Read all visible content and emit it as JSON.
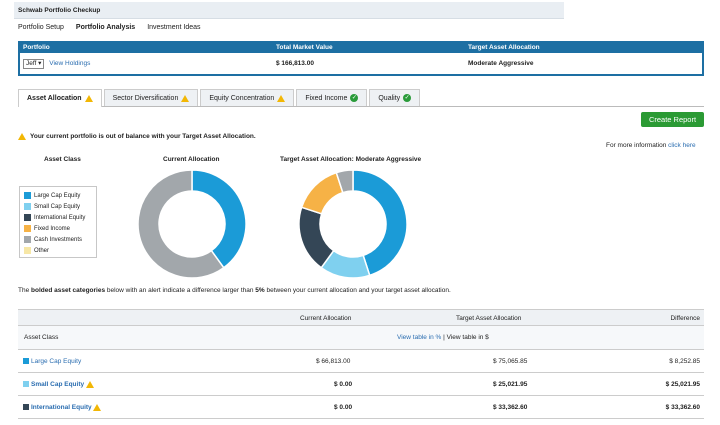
{
  "app": {
    "title": "Schwab Portfolio Checkup"
  },
  "nav": {
    "items": [
      "Portfolio Setup",
      "Portfolio Analysis",
      "Investment Ideas"
    ],
    "active_index": 1
  },
  "portfolio": {
    "headers": {
      "portfolio": "Portfolio",
      "market_value": "Total Market Value",
      "target": "Target Asset Allocation"
    },
    "account_select": "Jeff",
    "view_holdings": "View Holdings",
    "market_value": "$ 166,813.00",
    "target_allocation": "Moderate Aggressive"
  },
  "tabs": [
    {
      "label": "Asset Allocation",
      "status": "warn",
      "active": true
    },
    {
      "label": "Sector Diversification",
      "status": "warn",
      "active": false
    },
    {
      "label": "Equity Concentration",
      "status": "warn",
      "active": false
    },
    {
      "label": "Fixed Income",
      "status": "ok",
      "active": false
    },
    {
      "label": "Quality",
      "status": "ok",
      "active": false
    }
  ],
  "create_report": "Create Report",
  "alert_text": "Your current portfolio is out of balance with your Target Asset Allocation.",
  "more_info": {
    "text": "For more information",
    "link": "click here"
  },
  "columns": {
    "asset_class": "Asset Class",
    "current": "Current Allocation",
    "target": "Target Asset Allocation: Moderate Aggressive"
  },
  "legend": [
    {
      "label": "Large Cap Equity",
      "color": "#1b9bd7"
    },
    {
      "label": "Small Cap Equity",
      "color": "#7fd0ef"
    },
    {
      "label": "International Equity",
      "color": "#344656"
    },
    {
      "label": "Fixed Income",
      "color": "#f6b246"
    },
    {
      "label": "Cash Investments",
      "color": "#a2a7ab"
    },
    {
      "label": "Other",
      "color": "#f7e7a6"
    }
  ],
  "chart_data": [
    {
      "type": "pie",
      "title": "Current Allocation",
      "categories": [
        "Large Cap Equity",
        "Small Cap Equity",
        "International Equity",
        "Fixed Income",
        "Cash Investments",
        "Other"
      ],
      "values": [
        40,
        0,
        0,
        0,
        60,
        0
      ]
    },
    {
      "type": "pie",
      "title": "Target Asset Allocation: Moderate Aggressive",
      "categories": [
        "Large Cap Equity",
        "Small Cap Equity",
        "International Equity",
        "Fixed Income",
        "Cash Investments",
        "Other"
      ],
      "values": [
        45,
        15,
        20,
        15,
        5,
        0
      ]
    }
  ],
  "note": {
    "pre": "The ",
    "bold1": "bolded asset categories",
    "mid": " below with an alert indicate a difference larger than ",
    "bold2": "5%",
    "post": " between your current allocation and your target asset allocation."
  },
  "table": {
    "headers": {
      "current": "Current Allocation",
      "target": "Target Asset Allocation",
      "difference": "Difference"
    },
    "sub": {
      "asset_class": "Asset Class",
      "view_pct": "View table in %",
      "sep": " | ",
      "view_dollar": "View table in $"
    },
    "rows": [
      {
        "name": "Large Cap Equity",
        "color": "#1b9bd7",
        "bold": false,
        "alert": false,
        "current": "$ 66,813.00",
        "target": "$ 75,065.85",
        "difference": "$ 8,252.85"
      },
      {
        "name": "Small Cap Equity",
        "color": "#7fd0ef",
        "bold": true,
        "alert": true,
        "current": "$ 0.00",
        "target": "$ 25,021.95",
        "difference": "$ 25,021.95"
      },
      {
        "name": "International Equity",
        "color": "#344656",
        "bold": true,
        "alert": true,
        "current": "$ 0.00",
        "target": "$ 33,362.60",
        "difference": "$ 33,362.60"
      }
    ]
  }
}
